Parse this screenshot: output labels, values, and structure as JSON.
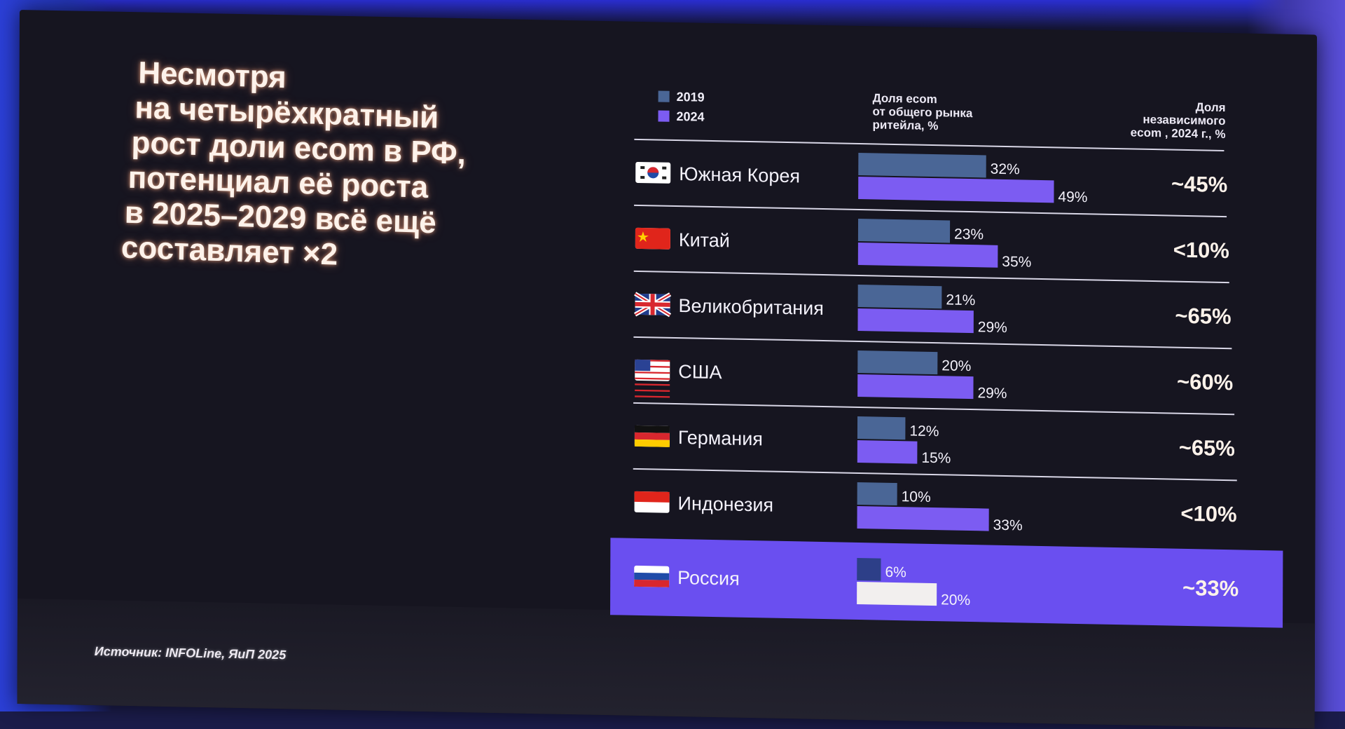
{
  "headline": [
    "Несмотря",
    "на четырёхкратный",
    "рост доли ecom в РФ,",
    "потенциал её роста",
    "в 2025–2029 всё ещё",
    "составляет ×2"
  ],
  "source": "Источник: INFOLine, ЯиП 2025",
  "column_headers": {
    "share": [
      "Доля ecom",
      "от общего рынка",
      "ритейла, %"
    ],
    "independent": [
      "Доля",
      "независимого",
      "ecom , 2024 г., %"
    ]
  },
  "colors": {
    "series_2019": "#4a6696",
    "series_2024": "#7c5cf2",
    "russia_row": "#6a4ff0",
    "russia_2019": "#2d3f88",
    "russia_2024": "#f2efee"
  },
  "chart_data": {
    "type": "bar",
    "orientation": "horizontal",
    "legend": [
      "2019",
      "2024"
    ],
    "legend_position": "top-left",
    "categories": [
      "Южная Корея",
      "Китай",
      "Великобритания",
      "США",
      "Германия",
      "Индонезия",
      "Россия"
    ],
    "flags": [
      "south-korea-flag-icon",
      "china-flag-icon",
      "uk-flag-icon",
      "usa-flag-icon",
      "germany-flag-icon",
      "indonesia-flag-icon",
      "russia-flag-icon"
    ],
    "series": [
      {
        "name": "2019",
        "values": [
          32,
          23,
          21,
          20,
          12,
          10,
          6
        ]
      },
      {
        "name": "2024",
        "values": [
          49,
          35,
          29,
          29,
          15,
          33,
          20
        ]
      }
    ],
    "value_labels": {
      "2019": [
        "32%",
        "23%",
        "21%",
        "20%",
        "12%",
        "10%",
        "6%"
      ],
      "2024": [
        "49%",
        "35%",
        "29%",
        "29%",
        "15%",
        "33%",
        "20%"
      ]
    },
    "independent_ecom_2024": [
      "~45%",
      "<10%",
      "~65%",
      "~60%",
      "~65%",
      "<10%",
      "~33%"
    ],
    "highlighted_category": "Россия"
  }
}
